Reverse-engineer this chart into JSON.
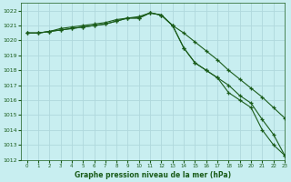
{
  "title": "Graphe pression niveau de la mer (hPa)",
  "background_color": "#c8eef0",
  "grid_color": "#b0d8dc",
  "line_color": "#1a5c1a",
  "xlim": [
    -0.5,
    23
  ],
  "ylim": [
    1012,
    1022.5
  ],
  "x_ticks": [
    0,
    1,
    2,
    3,
    4,
    5,
    6,
    7,
    8,
    9,
    10,
    11,
    12,
    13,
    14,
    15,
    16,
    17,
    18,
    19,
    20,
    21,
    22,
    23
  ],
  "y_ticks": [
    1012,
    1013,
    1014,
    1015,
    1016,
    1017,
    1018,
    1019,
    1020,
    1021,
    1022
  ],
  "series": [
    [
      1020.5,
      1020.5,
      1020.6,
      1020.8,
      1020.9,
      1021.0,
      1021.1,
      1021.2,
      1021.4,
      1021.5,
      1021.6,
      1021.85,
      1021.7,
      1021.0,
      1020.5,
      1019.9,
      1019.3,
      1018.7,
      1018.0,
      1017.4,
      1016.8,
      1016.2,
      1015.5,
      1014.8
    ],
    [
      1020.5,
      1020.5,
      1020.6,
      1020.7,
      1020.8,
      1020.9,
      1021.0,
      1021.1,
      1021.3,
      1021.5,
      1021.5,
      1021.85,
      1021.7,
      1021.0,
      1019.5,
      1018.5,
      1018.0,
      1017.5,
      1017.0,
      1016.3,
      1015.8,
      1014.7,
      1013.7,
      1012.3
    ],
    [
      1020.5,
      1020.5,
      1020.6,
      1020.7,
      1020.8,
      1020.9,
      1021.0,
      1021.1,
      1021.3,
      1021.5,
      1021.5,
      1021.85,
      1021.7,
      1021.0,
      1019.5,
      1018.5,
      1018.0,
      1017.5,
      1016.5,
      1016.0,
      1015.5,
      1014.0,
      1013.0,
      1012.3
    ]
  ]
}
